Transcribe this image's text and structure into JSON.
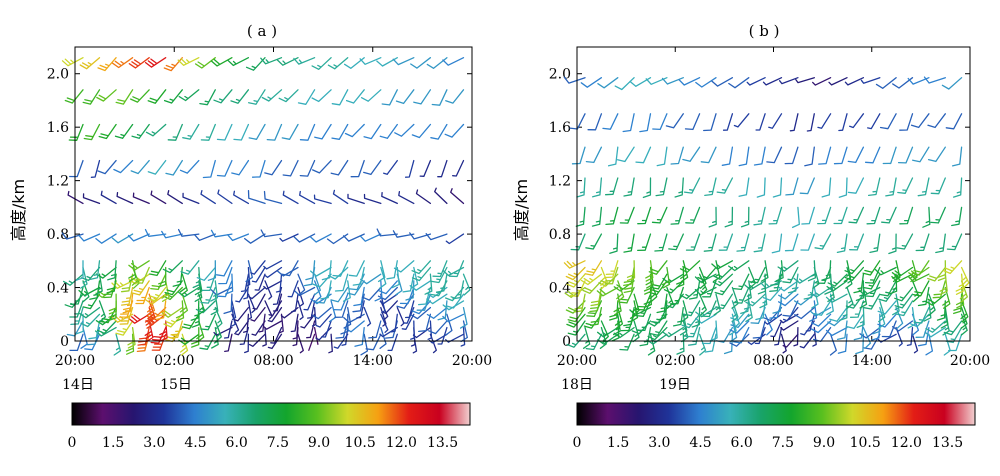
{
  "chart_data": [
    {
      "type": "wind-barb",
      "panel": "a",
      "title": "( a )",
      "ylabel": "高度/km",
      "ylim": [
        0,
        2.2
      ],
      "yticks": [
        "0",
        "0.4",
        "0.8",
        "1.2",
        "1.6",
        "2.0"
      ],
      "yvalues": [
        0,
        0.4,
        0.8,
        1.2,
        1.6,
        2.0
      ],
      "xlim_hours": [
        0,
        24
      ],
      "xticks": [
        "20:00",
        "02:00",
        "08:00",
        "14:00",
        "20:00"
      ],
      "xdates": [
        "14日",
        "15日"
      ],
      "speed_unit": "m/s",
      "levels_km": [
        0.05,
        0.1,
        0.15,
        0.2,
        0.25,
        0.3,
        0.35,
        0.4,
        0.45,
        0.5,
        0.55,
        0.6,
        0.8,
        1.03,
        1.35,
        1.62,
        1.88,
        2.12
      ],
      "times_h": [
        0,
        1,
        2,
        3,
        4,
        5,
        6,
        7,
        8,
        9,
        10,
        11,
        12,
        13,
        14,
        15,
        16,
        17,
        18,
        19,
        20,
        21,
        22,
        23
      ],
      "speed_grid": [
        [
          4.0,
          4.5,
          6.0,
          9.0,
          11.5,
          12.0,
          10.0,
          8.0,
          7.0,
          2.0,
          3.0,
          2.5,
          2.5,
          2.0,
          1.5,
          2.5,
          3.5,
          4.0,
          4.0,
          3.5,
          3.0,
          3.0,
          3.5,
          3.5
        ],
        [
          4.5,
          5.0,
          6.5,
          9.5,
          12.0,
          12.5,
          10.5,
          8.5,
          7.0,
          2.5,
          3.0,
          2.5,
          2.5,
          2.0,
          1.5,
          3.0,
          3.5,
          4.5,
          4.0,
          3.5,
          3.0,
          3.0,
          3.5,
          3.5
        ],
        [
          5.0,
          5.5,
          7.0,
          10.0,
          12.5,
          12.5,
          10.5,
          8.5,
          7.0,
          3.0,
          2.5,
          2.5,
          2.0,
          2.0,
          2.0,
          3.5,
          4.0,
          4.5,
          4.0,
          4.0,
          3.5,
          3.5,
          4.0,
          4.0
        ],
        [
          5.5,
          6.0,
          7.5,
          10.5,
          12.5,
          12.0,
          10.0,
          8.0,
          7.0,
          3.0,
          2.5,
          2.0,
          2.0,
          2.5,
          2.5,
          3.5,
          4.0,
          4.0,
          3.5,
          3.5,
          3.5,
          4.0,
          4.0,
          4.5
        ],
        [
          6.0,
          6.5,
          8.0,
          10.5,
          12.0,
          11.5,
          9.5,
          7.5,
          6.5,
          3.5,
          2.5,
          2.0,
          2.5,
          2.5,
          3.0,
          4.0,
          4.0,
          3.5,
          3.0,
          3.0,
          3.5,
          4.0,
          4.5,
          5.0
        ],
        [
          6.5,
          7.0,
          8.5,
          11.0,
          12.0,
          11.0,
          9.0,
          7.5,
          6.5,
          3.5,
          3.0,
          2.5,
          2.5,
          3.0,
          3.0,
          4.5,
          4.0,
          3.5,
          3.0,
          3.0,
          3.5,
          4.5,
          5.0,
          5.5
        ],
        [
          7.0,
          7.5,
          9.0,
          11.0,
          11.5,
          10.5,
          9.0,
          7.5,
          6.5,
          4.0,
          3.0,
          2.5,
          2.5,
          3.0,
          3.5,
          4.5,
          4.5,
          4.0,
          3.5,
          3.5,
          4.0,
          5.0,
          5.5,
          5.5
        ],
        [
          7.0,
          7.5,
          9.0,
          10.5,
          11.0,
          10.0,
          8.5,
          7.0,
          6.0,
          4.0,
          3.5,
          3.0,
          3.0,
          3.0,
          4.0,
          5.0,
          5.0,
          4.5,
          4.0,
          4.0,
          4.5,
          5.5,
          5.5,
          6.0
        ],
        [
          7.0,
          7.5,
          8.5,
          10.0,
          10.5,
          9.5,
          8.0,
          7.0,
          6.0,
          4.5,
          3.5,
          3.0,
          3.0,
          3.5,
          4.5,
          5.5,
          5.5,
          5.0,
          4.5,
          4.5,
          5.0,
          5.5,
          6.0,
          6.0
        ],
        [
          6.5,
          7.0,
          8.0,
          9.5,
          10.0,
          9.0,
          8.0,
          7.0,
          6.0,
          4.5,
          3.5,
          3.0,
          3.5,
          4.0,
          5.0,
          5.5,
          5.5,
          5.0,
          5.0,
          5.0,
          5.5,
          6.0,
          6.0,
          6.0
        ],
        [
          6.0,
          6.5,
          7.5,
          9.0,
          9.5,
          8.5,
          7.5,
          6.5,
          5.5,
          4.5,
          3.5,
          3.5,
          3.5,
          4.0,
          5.0,
          5.5,
          5.5,
          5.5,
          5.5,
          5.5,
          5.5,
          6.0,
          6.0,
          6.0
        ],
        [
          5.5,
          6.0,
          7.0,
          8.5,
          9.0,
          8.0,
          7.0,
          6.0,
          5.0,
          4.5,
          4.0,
          3.5,
          3.5,
          4.0,
          5.0,
          5.5,
          5.5,
          5.5,
          5.5,
          5.5,
          5.5,
          6.0,
          6.0,
          6.0
        ],
        [
          4.0,
          4.5,
          4.5,
          5.0,
          4.5,
          4.5,
          4.5,
          4.0,
          4.0,
          4.5,
          4.5,
          4.0,
          4.0,
          3.5,
          4.0,
          4.5,
          4.0,
          4.0,
          4.5,
          4.0,
          4.0,
          4.0,
          4.0,
          3.5
        ],
        [
          2.0,
          2.5,
          3.0,
          2.5,
          2.0,
          2.0,
          2.5,
          3.0,
          3.5,
          3.5,
          3.5,
          4.0,
          4.0,
          3.5,
          3.5,
          3.5,
          3.5,
          3.0,
          3.0,
          3.0,
          3.0,
          2.5,
          2.5,
          2.0
        ],
        [
          4.0,
          3.5,
          4.0,
          4.5,
          5.0,
          5.5,
          5.0,
          4.5,
          4.5,
          4.5,
          4.5,
          4.5,
          4.0,
          4.0,
          4.0,
          4.0,
          4.0,
          4.0,
          4.0,
          3.5,
          3.5,
          3.0,
          3.0,
          3.0
        ],
        [
          8.0,
          8.5,
          8.0,
          7.5,
          7.0,
          6.5,
          6.5,
          6.0,
          6.0,
          5.5,
          5.5,
          5.0,
          5.0,
          5.0,
          4.5,
          4.5,
          4.5,
          4.5,
          4.5,
          4.5,
          4.5,
          4.5,
          4.5,
          4.5
        ],
        [
          8.5,
          8.5,
          9.0,
          9.0,
          8.5,
          8.0,
          7.5,
          7.0,
          7.0,
          6.5,
          6.5,
          6.0,
          6.0,
          6.0,
          5.5,
          5.5,
          5.5,
          5.5,
          5.5,
          5.0,
          5.0,
          5.0,
          5.0,
          5.0
        ],
        [
          10.0,
          10.5,
          11.0,
          11.5,
          12.0,
          12.5,
          11.5,
          10.0,
          9.0,
          8.0,
          7.5,
          7.0,
          6.5,
          6.5,
          6.0,
          6.0,
          6.0,
          5.5,
          5.5,
          5.5,
          5.0,
          5.0,
          5.0,
          4.5
        ]
      ]
    },
    {
      "type": "wind-barb",
      "panel": "b",
      "title": "( b )",
      "ylabel": "高度/km",
      "ylim": [
        0,
        2.2
      ],
      "yticks": [
        "0",
        "0.4",
        "0.8",
        "1.2",
        "1.6",
        "2.0"
      ],
      "yvalues": [
        0,
        0.4,
        0.8,
        1.2,
        1.6,
        2.0
      ],
      "xlim_hours": [
        0,
        24
      ],
      "xticks": [
        "20:00",
        "02:00",
        "08:00",
        "14:00",
        "20:00"
      ],
      "xdates": [
        "18日",
        "19日"
      ],
      "speed_unit": "m/s",
      "levels_km": [
        0.05,
        0.1,
        0.15,
        0.2,
        0.25,
        0.3,
        0.35,
        0.4,
        0.45,
        0.5,
        0.55,
        0.6,
        0.8,
        1.0,
        1.22,
        1.45,
        1.7,
        1.97
      ],
      "times_h": [
        0,
        1,
        2,
        3,
        4,
        5,
        6,
        7,
        8,
        9,
        10,
        11,
        12,
        13,
        14,
        15,
        16,
        17,
        18,
        19,
        20,
        21,
        22,
        23
      ],
      "speed_grid": [
        [
          6.5,
          6.5,
          7.0,
          7.0,
          7.0,
          6.5,
          6.5,
          6.0,
          5.5,
          5.0,
          4.0,
          3.5,
          2.5,
          2.0,
          3.0,
          4.0,
          4.5,
          5.0,
          4.0,
          3.5,
          3.0,
          4.5,
          5.5,
          5.5
        ],
        [
          7.0,
          7.0,
          7.0,
          7.0,
          7.0,
          7.0,
          6.5,
          6.0,
          5.5,
          5.0,
          4.5,
          3.5,
          3.0,
          2.5,
          3.0,
          4.0,
          4.5,
          5.0,
          4.0,
          3.5,
          3.5,
          4.5,
          5.5,
          6.0
        ],
        [
          7.5,
          7.5,
          7.5,
          7.0,
          7.0,
          7.0,
          6.5,
          6.0,
          5.5,
          5.0,
          4.5,
          4.0,
          3.0,
          2.5,
          3.5,
          4.5,
          5.0,
          5.0,
          4.5,
          4.0,
          4.0,
          5.0,
          6.0,
          6.5
        ],
        [
          8.0,
          8.0,
          7.5,
          7.5,
          7.0,
          7.0,
          6.5,
          6.0,
          5.5,
          5.5,
          5.0,
          4.5,
          3.5,
          3.0,
          3.5,
          4.5,
          5.0,
          5.5,
          5.0,
          4.5,
          4.5,
          5.5,
          6.5,
          7.0
        ],
        [
          8.5,
          8.5,
          8.0,
          7.5,
          7.5,
          7.0,
          7.0,
          6.5,
          6.0,
          5.5,
          5.5,
          5.0,
          4.0,
          3.5,
          4.0,
          5.0,
          5.5,
          6.0,
          5.5,
          5.0,
          5.5,
          6.0,
          7.0,
          7.5
        ],
        [
          9.0,
          8.5,
          8.0,
          8.0,
          7.5,
          7.5,
          7.0,
          6.5,
          6.5,
          6.0,
          6.0,
          5.5,
          4.5,
          4.0,
          4.5,
          5.5,
          6.0,
          6.0,
          6.0,
          5.5,
          6.0,
          6.5,
          7.5,
          8.0
        ],
        [
          9.5,
          9.0,
          8.5,
          8.0,
          8.0,
          7.5,
          7.0,
          7.0,
          6.5,
          6.5,
          6.0,
          6.0,
          5.0,
          4.5,
          5.0,
          5.5,
          6.0,
          6.5,
          6.5,
          6.0,
          6.5,
          7.0,
          8.0,
          8.5
        ],
        [
          9.5,
          9.5,
          9.0,
          8.5,
          8.0,
          7.5,
          7.5,
          7.0,
          7.0,
          6.5,
          6.5,
          6.0,
          5.5,
          5.0,
          5.5,
          6.0,
          6.5,
          7.0,
          7.0,
          6.5,
          7.0,
          7.5,
          8.5,
          9.0
        ],
        [
          10.0,
          9.5,
          9.0,
          8.5,
          8.0,
          8.0,
          7.5,
          7.0,
          7.0,
          7.0,
          6.5,
          6.5,
          6.0,
          5.5,
          6.0,
          6.5,
          7.0,
          7.0,
          7.0,
          7.0,
          7.5,
          8.0,
          9.0,
          9.5
        ],
        [
          10.0,
          10.0,
          9.5,
          9.0,
          8.5,
          8.0,
          7.5,
          7.5,
          7.0,
          7.0,
          7.0,
          6.5,
          6.5,
          6.0,
          6.0,
          6.5,
          7.0,
          7.5,
          7.5,
          7.5,
          8.0,
          8.5,
          9.5,
          10.0
        ],
        [
          10.5,
          10.0,
          9.5,
          9.0,
          8.5,
          8.5,
          8.0,
          7.5,
          7.5,
          7.0,
          7.0,
          7.0,
          6.5,
          6.5,
          6.5,
          7.0,
          7.0,
          7.5,
          7.5,
          7.5,
          8.0,
          9.0,
          9.5,
          10.0
        ],
        [
          10.5,
          10.5,
          10.0,
          9.5,
          9.0,
          8.5,
          8.0,
          8.0,
          7.5,
          7.5,
          7.0,
          7.0,
          7.0,
          6.5,
          6.5,
          7.0,
          7.5,
          7.5,
          8.0,
          8.0,
          8.5,
          9.0,
          9.5,
          10.0
        ],
        [
          6.5,
          7.0,
          7.0,
          7.5,
          7.5,
          7.0,
          7.0,
          6.5,
          6.5,
          6.0,
          6.0,
          6.0,
          5.5,
          5.5,
          5.5,
          6.0,
          6.0,
          6.0,
          6.5,
          6.5,
          6.5,
          6.5,
          6.5,
          6.5
        ],
        [
          7.0,
          7.0,
          7.5,
          7.5,
          7.5,
          7.5,
          7.0,
          7.0,
          6.5,
          6.5,
          6.5,
          6.0,
          6.0,
          5.5,
          5.5,
          6.0,
          6.0,
          6.5,
          6.5,
          6.5,
          7.0,
          7.0,
          7.0,
          7.0
        ],
        [
          6.0,
          6.0,
          6.5,
          6.5,
          6.5,
          6.5,
          6.5,
          6.0,
          6.0,
          6.0,
          5.5,
          5.5,
          5.5,
          5.0,
          5.0,
          5.5,
          5.5,
          5.5,
          6.0,
          6.0,
          6.0,
          6.0,
          6.0,
          6.0
        ],
        [
          5.0,
          5.0,
          5.5,
          5.5,
          5.5,
          5.5,
          5.0,
          5.0,
          5.0,
          4.5,
          4.5,
          4.5,
          4.0,
          4.0,
          4.0,
          4.5,
          4.5,
          4.5,
          4.5,
          5.0,
          5.0,
          5.0,
          5.0,
          5.0
        ],
        [
          4.0,
          4.0,
          4.5,
          4.5,
          4.5,
          4.5,
          4.0,
          4.0,
          4.0,
          3.5,
          3.5,
          3.5,
          3.5,
          3.0,
          3.0,
          3.5,
          3.5,
          3.5,
          3.5,
          4.0,
          4.0,
          4.0,
          4.0,
          4.0
        ],
        [
          4.0,
          4.5,
          5.0,
          5.5,
          5.5,
          5.5,
          5.0,
          4.5,
          4.5,
          4.0,
          4.0,
          3.5,
          3.0,
          3.0,
          2.5,
          2.0,
          2.5,
          3.0,
          3.5,
          4.0,
          4.0,
          4.5,
          4.5,
          5.0
        ]
      ]
    }
  ],
  "colorbar": {
    "ticks": [
      "0",
      "1.5",
      "3.0",
      "4.5",
      "6.0",
      "7.5",
      "9.0",
      "10.5",
      "12.0",
      "13.5"
    ],
    "range": [
      0,
      14.5
    ],
    "stops": [
      "#000000",
      "#5c0f6e",
      "#27156f",
      "#1f3399",
      "#2e7fd0",
      "#38b1b9",
      "#19a36a",
      "#13a52d",
      "#58bf1f",
      "#d0d82a",
      "#f6a012",
      "#e31d16",
      "#c9001f",
      "#f2d0d0"
    ]
  }
}
